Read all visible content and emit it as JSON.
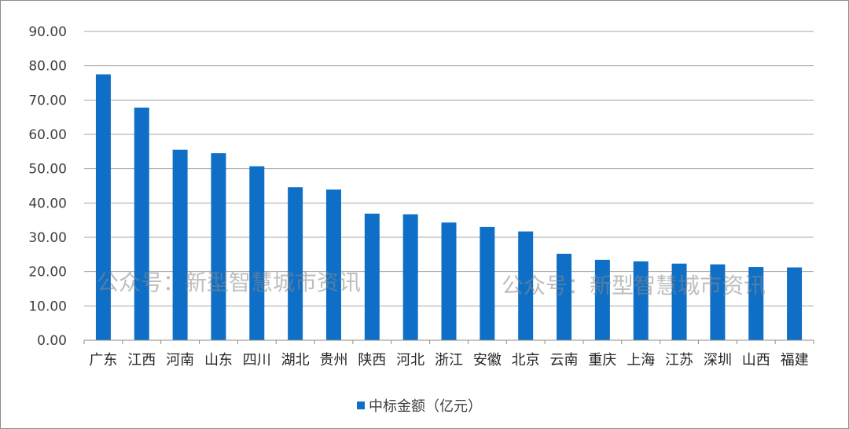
{
  "chart_data": {
    "type": "bar",
    "categories": [
      "广东",
      "江西",
      "河南",
      "山东",
      "四川",
      "湖北",
      "贵州",
      "陕西",
      "河北",
      "浙江",
      "安徽",
      "北京",
      "云南",
      "重庆",
      "上海",
      "江苏",
      "深圳",
      "山西",
      "福建"
    ],
    "series": [
      {
        "name": "中标金额（亿元）",
        "color": "#0f6fc6",
        "values": [
          77.5,
          67.8,
          55.5,
          54.5,
          50.7,
          44.6,
          43.9,
          36.9,
          36.7,
          34.3,
          33.0,
          31.7,
          25.2,
          23.4,
          23.0,
          22.3,
          22.1,
          21.3,
          21.2
        ]
      }
    ],
    "ylim": [
      0,
      90
    ],
    "yticks": [
      "0.00",
      "10.00",
      "20.00",
      "30.00",
      "40.00",
      "50.00",
      "60.00",
      "70.00",
      "80.00",
      "90.00"
    ],
    "grid": true,
    "legend": "bottom"
  },
  "watermarks": [
    "公众号：新型智慧城市资讯",
    "公众号：新型智慧城市资讯"
  ],
  "colors": {
    "bar": "#0f6fc6",
    "grid": "#a6a6a6",
    "axis": "#8c8c8c"
  }
}
